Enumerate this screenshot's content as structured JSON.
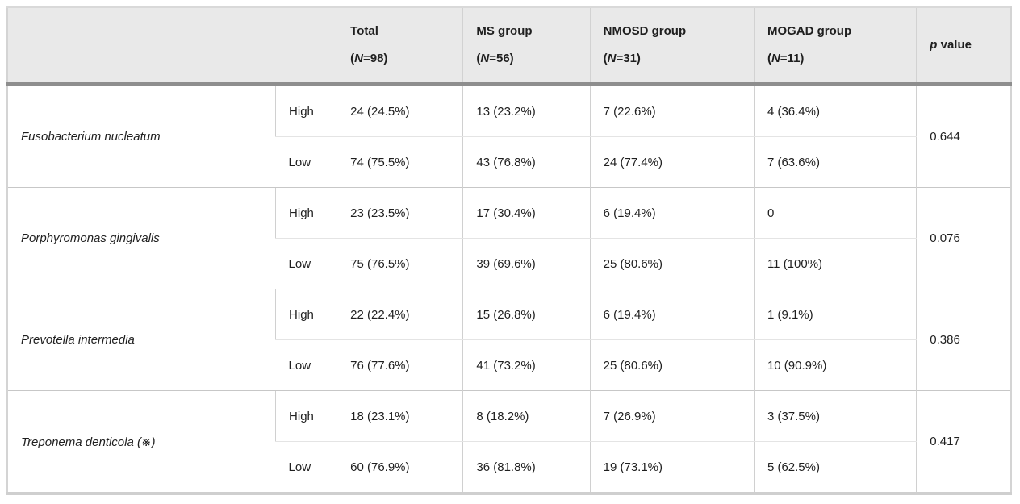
{
  "colors": {
    "header_bg": "#e9e9e9",
    "thick_divider": "#8e8e8e",
    "outer_border": "#d4d4d4",
    "subrow_border": "#e4e4e4",
    "group_border": "#c7c7c7",
    "text": "#1f1f1f"
  },
  "table": {
    "header": {
      "empty_label": "",
      "columns": [
        {
          "label": "Total",
          "n_open": "(",
          "n_letter": "N",
          "n_rest": "=98)"
        },
        {
          "label": "MS group",
          "n_open": "(",
          "n_letter": "N",
          "n_rest": "=56)"
        },
        {
          "label": "NMOSD group",
          "n_open": "(",
          "n_letter": "N",
          "n_rest": "=31)"
        },
        {
          "label": "MOGAD group",
          "n_open": "(",
          "n_letter": "N",
          "n_rest": "=11)"
        }
      ],
      "p_italic": "p",
      "p_rest": " value"
    },
    "levels": {
      "high": "High",
      "low": "Low"
    },
    "rows": [
      {
        "name": "Fusobacterium nucleatum",
        "high": [
          "24 (24.5%)",
          "13 (23.2%)",
          "7 (22.6%)",
          "4 (36.4%)"
        ],
        "low": [
          "74 (75.5%)",
          "43 (76.8%)",
          "24 (77.4%)",
          "7 (63.6%)"
        ],
        "p": "0.644"
      },
      {
        "name": "Porphyromonas gingivalis",
        "high": [
          "23 (23.5%)",
          "17 (30.4%)",
          "6 (19.4%)",
          "0"
        ],
        "low": [
          "75 (76.5%)",
          "39 (69.6%)",
          "25 (80.6%)",
          "11 (100%)"
        ],
        "p": "0.076"
      },
      {
        "name": "Prevotella intermedia",
        "high": [
          "22 (22.4%)",
          "15 (26.8%)",
          "6 (19.4%)",
          "1 (9.1%)"
        ],
        "low": [
          "76 (77.6%)",
          "41 (73.2%)",
          "25 (80.6%)",
          "10 (90.9%)"
        ],
        "p": "0.386"
      },
      {
        "name": "Treponema denticola (※)",
        "high": [
          "18 (23.1%)",
          "8 (18.2%)",
          "7 (26.9%)",
          "3 (37.5%)"
        ],
        "low": [
          "60 (76.9%)",
          "36 (81.8%)",
          "19 (73.1%)",
          "5 (62.5%)"
        ],
        "p": "0.417"
      }
    ]
  }
}
